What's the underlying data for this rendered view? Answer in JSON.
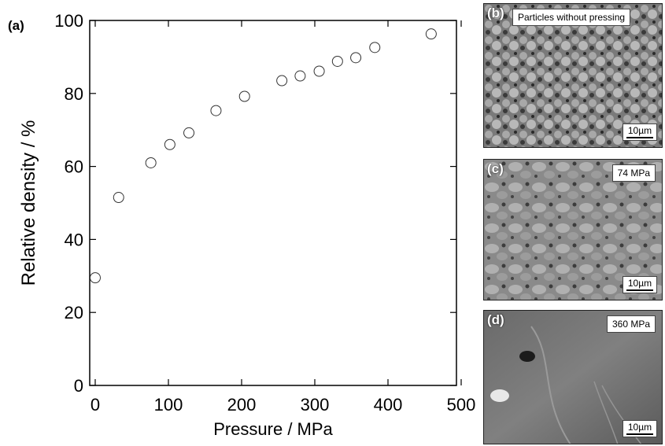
{
  "chart_data": {
    "type": "scatter",
    "panel_label": "(a)",
    "xlabel": "Pressure / MPa",
    "ylabel": "Relative density / %",
    "xlim": [
      0,
      500
    ],
    "ylim": [
      0,
      100
    ],
    "xticks": [
      0,
      100,
      200,
      300,
      400,
      500
    ],
    "yticks": [
      0,
      20,
      40,
      60,
      80,
      100
    ],
    "marker": "open-circle",
    "grid": false,
    "series": [
      {
        "x": [
          0,
          32,
          76,
          102,
          128,
          165,
          204,
          255,
          280,
          306,
          331,
          356,
          382,
          459
        ],
        "y": [
          29.5,
          51.5,
          61,
          66,
          69.2,
          75.3,
          79.2,
          83.5,
          84.8,
          86.1,
          88.8,
          89.8,
          92.6,
          96.3
        ]
      }
    ]
  },
  "micrographs": [
    {
      "letter": "(b)",
      "label": "Particles without pressing",
      "scale": "10µm"
    },
    {
      "letter": "(c)",
      "label": "74 MPa",
      "scale": "10µm"
    },
    {
      "letter": "(d)",
      "label": "360 MPa",
      "scale": "10µm"
    }
  ]
}
